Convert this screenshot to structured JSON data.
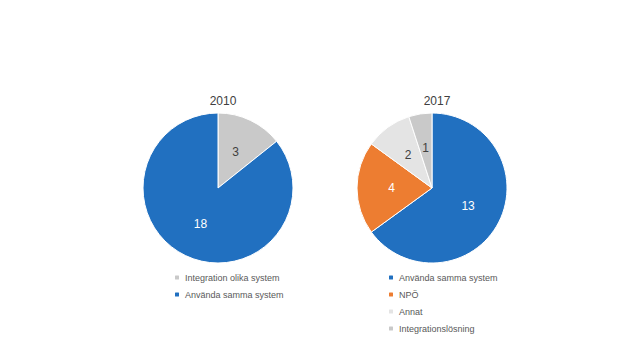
{
  "chart_data": [
    {
      "type": "pie",
      "title": "2010",
      "categories": [
        "Integration olika system",
        "Använda samma system"
      ],
      "values": [
        3,
        18
      ],
      "colors": [
        "#c9c9c9",
        "#2170c0"
      ],
      "data_labels": true,
      "legend": "bottom"
    },
    {
      "type": "pie",
      "title": "2017",
      "categories": [
        "Använda samma system",
        "NPÖ",
        "Annat",
        "Integrationslösning"
      ],
      "values": [
        13,
        4,
        2,
        1
      ],
      "colors": [
        "#2170c0",
        "#ed7d31",
        "#e4e4e4",
        "#c9c9c9"
      ],
      "data_labels": true,
      "legend": "bottom"
    }
  ]
}
